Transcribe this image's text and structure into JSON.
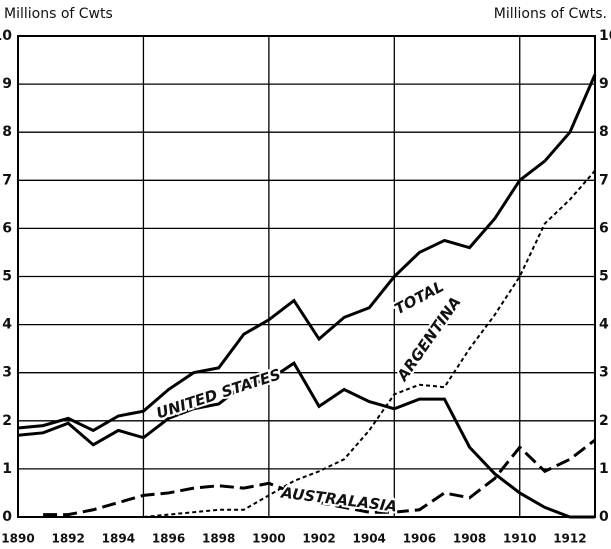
{
  "chart_data": {
    "type": "line",
    "y_label": "Millions of Cwts",
    "y2_label": "Millions of Cwts.",
    "x": [
      1890,
      1891,
      1892,
      1893,
      1894,
      1895,
      1896,
      1897,
      1898,
      1899,
      1900,
      1901,
      1902,
      1903,
      1904,
      1905,
      1906,
      1907,
      1908,
      1909,
      1910,
      1911,
      1912,
      1913
    ],
    "xlim": [
      1890,
      1913
    ],
    "xticks": [
      1890,
      1892,
      1894,
      1896,
      1898,
      1900,
      1902,
      1904,
      1906,
      1908,
      1910,
      1912
    ],
    "xgrid": [
      1890,
      1895,
      1900,
      1905,
      1910
    ],
    "ylim": [
      0,
      10
    ],
    "yticks": [
      0,
      1,
      2,
      3,
      4,
      5,
      6,
      7,
      8,
      9,
      10
    ],
    "y2lim": [
      0,
      10
    ],
    "y2ticks": [
      0,
      1,
      2,
      3,
      4,
      5,
      6,
      7,
      8,
      9,
      10
    ],
    "grid": true,
    "series": [
      {
        "name": "TOTAL",
        "color": "#000000",
        "dash": "solid",
        "values": [
          1.85,
          1.9,
          2.05,
          1.8,
          2.1,
          2.2,
          2.65,
          3.0,
          3.1,
          3.8,
          4.1,
          4.5,
          3.7,
          4.15,
          4.35,
          5.0,
          5.5,
          5.75,
          5.6,
          6.2,
          7.0,
          7.4,
          8.0,
          9.2
        ]
      },
      {
        "name": "UNITED STATES",
        "color": "#000000",
        "dash": "solid",
        "values": [
          1.7,
          1.75,
          1.95,
          1.5,
          1.8,
          1.65,
          2.05,
          2.25,
          2.35,
          2.75,
          2.85,
          3.2,
          2.3,
          2.65,
          2.4,
          2.25,
          2.45,
          2.45,
          1.45,
          0.9,
          0.5,
          0.2,
          0.0,
          0.0
        ]
      },
      {
        "name": "ARGENTINA",
        "color": "#000000",
        "dash": "dotted",
        "values": [
          null,
          null,
          null,
          null,
          null,
          0.0,
          0.05,
          0.1,
          0.15,
          0.15,
          0.45,
          0.75,
          0.95,
          1.2,
          1.8,
          2.55,
          2.75,
          2.7,
          3.5,
          4.2,
          5.0,
          6.1,
          6.6,
          7.2
        ]
      },
      {
        "name": "AUSTRALASIA",
        "color": "#000000",
        "dash": "dashed",
        "values": [
          null,
          0.05,
          0.05,
          0.15,
          0.3,
          0.45,
          0.5,
          0.6,
          0.65,
          0.6,
          0.7,
          0.5,
          0.3,
          0.2,
          0.1,
          0.1,
          0.15,
          0.5,
          0.4,
          0.8,
          1.45,
          0.95,
          1.2,
          1.6
        ]
      }
    ]
  }
}
